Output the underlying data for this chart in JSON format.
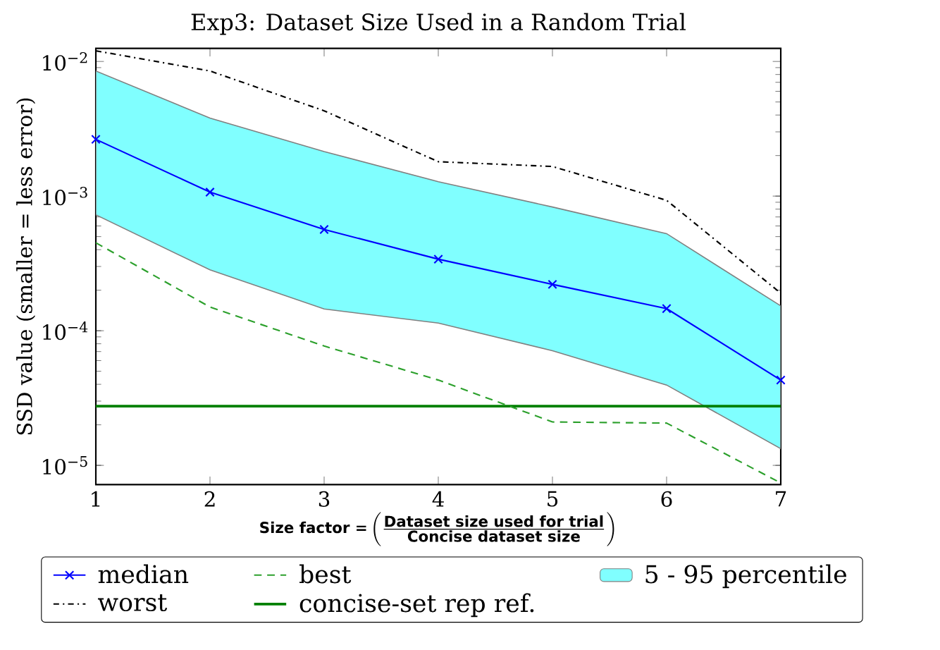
{
  "chart_data": {
    "type": "line",
    "title": "Exp3: Dataset Size Used in a Random Trial",
    "xlabel": "\\mbox{\\textbf{Size factor =}}\\left(\\frac{\\mbox{\\textbf{Dataset size used for trial}}}{\\mbox{\\textbf{Concise dataset size}}}\\right)",
    "ylabel": "SSD value (smaller = less error)",
    "x": [
      1,
      2,
      3,
      4,
      5,
      6,
      7
    ],
    "series": [
      {
        "name": "median",
        "color": "#0000ff",
        "marker": "cross",
        "line_style": "solid",
        "values": [
          0.00264,
          0.00107,
          0.000565,
          0.00034,
          0.000221,
          0.000146,
          4.3e-05
        ],
        "upper": [
          0.0085,
          0.0038,
          0.00214,
          0.00128,
          0.00083,
          0.000526,
          0.000153
        ],
        "lower": [
          0.000726,
          0.000283,
          0.000145,
          0.000114,
          7.1e-05,
          3.95e-05,
          1.33e-05
        ]
      },
      {
        "name": "worst",
        "color": "#000000",
        "marker": "none",
        "line_style": "dashdot",
        "values": [
          0.012,
          0.0085,
          0.0043,
          0.0018,
          0.00166,
          0.00093,
          0.00019
        ]
      },
      {
        "name": "best",
        "color": "#2ca02c",
        "marker": "none",
        "line_style": "dashed",
        "values": [
          0.00045,
          0.00015,
          7.7e-05,
          4.3e-05,
          2.1e-05,
          2.06e-05,
          7.4e-06
        ]
      }
    ],
    "annotations": [
      "5 - 95 percentile"
    ],
    "ref_lines": [
      {
        "axis": "y",
        "value": 2.75e-05,
        "label": "concise-set rep ref.",
        "color": "#008000"
      }
    ],
    "log": "y",
    "xlim": [
      1,
      7
    ],
    "ylim": [
      7.2e-06,
      0.0125
    ],
    "xticks": [
      1,
      2,
      3,
      4,
      5,
      6,
      7
    ],
    "yticks": [
      {
        "value": 1e-05,
        "label": "10$^{−5}$"
      },
      {
        "value": 0.0001,
        "label": "10$^{−4}$"
      },
      {
        "value": 0.001,
        "label": "10$^{−3}$"
      },
      {
        "value": 0.01,
        "label": "10$^{−2}$"
      }
    ],
    "grid": false,
    "legend": "bottom"
  }
}
